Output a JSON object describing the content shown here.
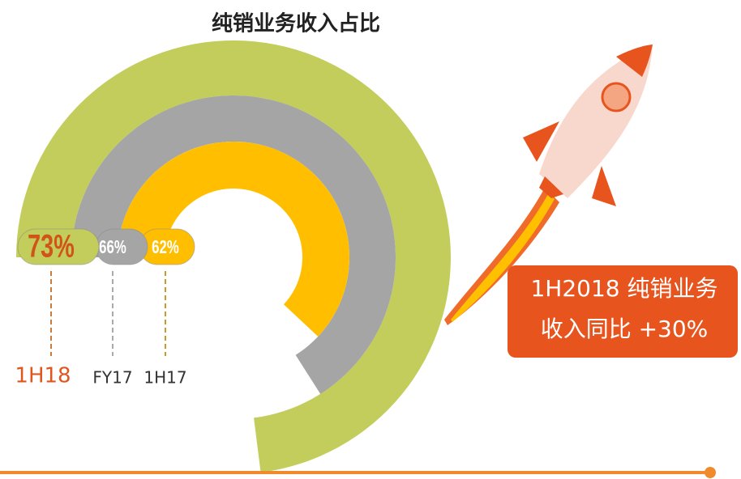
{
  "chart_data": {
    "type": "radial_bar",
    "title": "纯销业务收入占比",
    "categories": [
      "1H18",
      "FY17",
      "1H17"
    ],
    "values": [
      73,
      66,
      62
    ],
    "value_labels": [
      "73%",
      "66%",
      "62%"
    ],
    "colors": [
      "#c3cd5b",
      "#a5a5a5",
      "#ffbf00"
    ],
    "ylim": [
      0,
      100
    ],
    "annotation": [
      "1H2018 纯销业务",
      "收入同比 +30%"
    ]
  }
}
